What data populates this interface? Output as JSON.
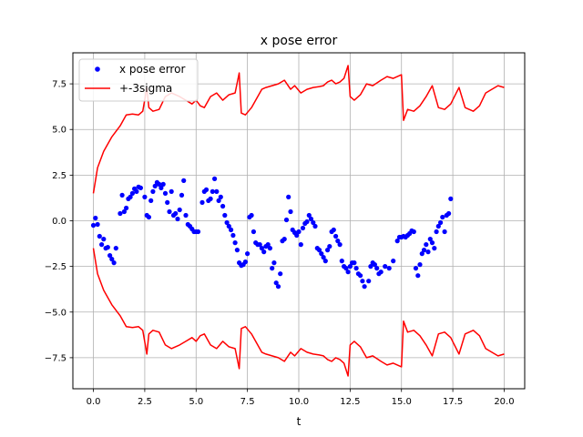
{
  "chart_data": {
    "type": "scatter",
    "title": "x pose error",
    "xlabel": "t",
    "ylabel": "",
    "xlim": [
      -1.0,
      21.0
    ],
    "ylim": [
      -9.2,
      9.2
    ],
    "xticks": [
      0.0,
      2.5,
      5.0,
      7.5,
      10.0,
      12.5,
      15.0,
      17.5,
      20.0
    ],
    "xtick_labels": [
      "0.0",
      "2.5",
      "5.0",
      "7.5",
      "10.0",
      "12.5",
      "15.0",
      "17.5",
      "20.0"
    ],
    "yticks": [
      -7.5,
      -5.0,
      -2.5,
      0.0,
      2.5,
      5.0,
      7.5
    ],
    "ytick_labels": [
      "−7.5",
      "−5.0",
      "−2.5",
      "0.0",
      "2.5",
      "5.0",
      "7.5"
    ],
    "grid": true,
    "legend_position": "upper-left",
    "series": [
      {
        "name": "x pose error",
        "kind": "scatter",
        "color": "#0000ff",
        "points": [
          [
            0.0,
            -0.25
          ],
          [
            0.1,
            0.15
          ],
          [
            0.2,
            -0.2
          ],
          [
            0.3,
            -0.85
          ],
          [
            0.4,
            -1.3
          ],
          [
            0.5,
            -1.0
          ],
          [
            0.6,
            -1.5
          ],
          [
            0.7,
            -1.45
          ],
          [
            0.8,
            -1.9
          ],
          [
            0.9,
            -2.1
          ],
          [
            1.0,
            -2.3
          ],
          [
            1.1,
            -1.5
          ],
          [
            1.3,
            0.4
          ],
          [
            1.4,
            1.4
          ],
          [
            1.5,
            0.5
          ],
          [
            1.6,
            0.7
          ],
          [
            1.7,
            1.2
          ],
          [
            1.8,
            1.3
          ],
          [
            1.9,
            1.5
          ],
          [
            2.0,
            1.75
          ],
          [
            2.1,
            1.6
          ],
          [
            2.2,
            1.85
          ],
          [
            2.3,
            1.8
          ],
          [
            2.5,
            1.3
          ],
          [
            2.6,
            0.3
          ],
          [
            2.7,
            0.2
          ],
          [
            2.8,
            1.1
          ],
          [
            2.9,
            1.6
          ],
          [
            3.0,
            1.9
          ],
          [
            3.1,
            2.1
          ],
          [
            3.2,
            2.0
          ],
          [
            3.3,
            1.8
          ],
          [
            3.4,
            2.0
          ],
          [
            3.5,
            1.5
          ],
          [
            3.6,
            1.0
          ],
          [
            3.7,
            0.5
          ],
          [
            3.8,
            1.6
          ],
          [
            3.9,
            0.3
          ],
          [
            4.0,
            0.4
          ],
          [
            4.1,
            0.1
          ],
          [
            4.2,
            0.6
          ],
          [
            4.3,
            1.4
          ],
          [
            4.4,
            2.2
          ],
          [
            4.5,
            0.3
          ],
          [
            4.6,
            -0.2
          ],
          [
            4.7,
            -0.3
          ],
          [
            4.8,
            -0.45
          ],
          [
            4.9,
            -0.6
          ],
          [
            5.0,
            -0.6
          ],
          [
            5.1,
            -0.6
          ],
          [
            5.3,
            1.0
          ],
          [
            5.4,
            1.6
          ],
          [
            5.5,
            1.7
          ],
          [
            5.6,
            1.1
          ],
          [
            5.7,
            1.2
          ],
          [
            5.8,
            1.6
          ],
          [
            5.9,
            2.3
          ],
          [
            6.0,
            1.6
          ],
          [
            6.1,
            1.1
          ],
          [
            6.2,
            1.3
          ],
          [
            6.3,
            0.8
          ],
          [
            6.4,
            0.3
          ],
          [
            6.5,
            -0.1
          ],
          [
            6.6,
            -0.3
          ],
          [
            6.7,
            -0.5
          ],
          [
            6.8,
            -0.8
          ],
          [
            6.9,
            -1.2
          ],
          [
            7.0,
            -1.6
          ],
          [
            7.1,
            -2.3
          ],
          [
            7.2,
            -2.45
          ],
          [
            7.3,
            -2.4
          ],
          [
            7.4,
            -2.25
          ],
          [
            7.5,
            -1.8
          ],
          [
            7.6,
            0.2
          ],
          [
            7.7,
            0.3
          ],
          [
            7.8,
            -0.6
          ],
          [
            7.9,
            -1.2
          ],
          [
            8.0,
            -1.3
          ],
          [
            8.1,
            -1.3
          ],
          [
            8.2,
            -1.5
          ],
          [
            8.3,
            -1.7
          ],
          [
            8.4,
            -1.4
          ],
          [
            8.5,
            -1.3
          ],
          [
            8.6,
            -1.5
          ],
          [
            8.7,
            -2.6
          ],
          [
            8.8,
            -2.3
          ],
          [
            8.9,
            -3.4
          ],
          [
            9.0,
            -3.6
          ],
          [
            9.1,
            -2.9
          ],
          [
            9.2,
            -1.1
          ],
          [
            9.3,
            -1.0
          ],
          [
            9.4,
            0.05
          ],
          [
            9.5,
            1.3
          ],
          [
            9.6,
            0.5
          ],
          [
            9.7,
            -0.5
          ],
          [
            9.8,
            -0.65
          ],
          [
            9.9,
            -0.8
          ],
          [
            10.0,
            -0.6
          ],
          [
            10.1,
            -1.3
          ],
          [
            10.2,
            -0.4
          ],
          [
            10.3,
            -0.15
          ],
          [
            10.4,
            -0.05
          ],
          [
            10.5,
            0.3
          ],
          [
            10.6,
            0.1
          ],
          [
            10.7,
            -0.1
          ],
          [
            10.8,
            -0.3
          ],
          [
            10.9,
            -1.5
          ],
          [
            11.0,
            -1.6
          ],
          [
            11.1,
            -1.8
          ],
          [
            11.2,
            -2.0
          ],
          [
            11.3,
            -2.2
          ],
          [
            11.4,
            -1.6
          ],
          [
            11.5,
            -1.4
          ],
          [
            11.6,
            -0.6
          ],
          [
            11.7,
            -0.5
          ],
          [
            11.8,
            -0.85
          ],
          [
            11.9,
            -1.1
          ],
          [
            12.0,
            -1.3
          ],
          [
            12.1,
            -2.2
          ],
          [
            12.2,
            -2.5
          ],
          [
            12.3,
            -2.6
          ],
          [
            12.4,
            -2.8
          ],
          [
            12.5,
            -2.5
          ],
          [
            12.6,
            -2.3
          ],
          [
            12.7,
            -2.3
          ],
          [
            12.8,
            -2.6
          ],
          [
            12.9,
            -2.9
          ],
          [
            13.0,
            -3.0
          ],
          [
            13.1,
            -3.3
          ],
          [
            13.2,
            -3.6
          ],
          [
            13.4,
            -3.3
          ],
          [
            13.5,
            -2.5
          ],
          [
            13.6,
            -2.3
          ],
          [
            13.7,
            -2.4
          ],
          [
            13.8,
            -2.6
          ],
          [
            13.9,
            -2.9
          ],
          [
            14.0,
            -2.8
          ],
          [
            14.2,
            -2.5
          ],
          [
            14.4,
            -2.6
          ],
          [
            14.6,
            -2.2
          ],
          [
            14.8,
            -1.1
          ],
          [
            14.9,
            -0.9
          ],
          [
            15.0,
            -0.9
          ],
          [
            15.1,
            -0.85
          ],
          [
            15.2,
            -0.9
          ],
          [
            15.3,
            -0.8
          ],
          [
            15.4,
            -0.7
          ],
          [
            15.5,
            -0.55
          ],
          [
            15.6,
            -0.6
          ],
          [
            15.7,
            -2.6
          ],
          [
            15.8,
            -3.0
          ],
          [
            15.9,
            -2.4
          ],
          [
            16.0,
            -1.8
          ],
          [
            16.1,
            -1.6
          ],
          [
            16.2,
            -1.3
          ],
          [
            16.3,
            -1.7
          ],
          [
            16.4,
            -1.0
          ],
          [
            16.5,
            -1.2
          ],
          [
            16.6,
            -1.5
          ],
          [
            16.7,
            -0.6
          ],
          [
            16.8,
            -0.3
          ],
          [
            16.9,
            -0.1
          ],
          [
            17.0,
            0.2
          ],
          [
            17.1,
            -0.6
          ],
          [
            17.2,
            0.3
          ],
          [
            17.3,
            0.4
          ],
          [
            17.4,
            1.2
          ]
        ]
      },
      {
        "name": "+-3sigma",
        "kind": "line",
        "color": "#ff0000",
        "upper": [
          [
            0.0,
            1.5
          ],
          [
            0.2,
            2.9
          ],
          [
            0.5,
            3.8
          ],
          [
            0.9,
            4.6
          ],
          [
            1.3,
            5.2
          ],
          [
            1.6,
            5.8
          ],
          [
            1.9,
            5.85
          ],
          [
            2.2,
            5.8
          ],
          [
            2.4,
            6.0
          ],
          [
            2.6,
            7.3
          ],
          [
            2.7,
            6.2
          ],
          [
            2.9,
            6.0
          ],
          [
            3.2,
            6.1
          ],
          [
            3.5,
            6.8
          ],
          [
            3.8,
            7.0
          ],
          [
            4.2,
            6.8
          ],
          [
            4.5,
            6.6
          ],
          [
            4.8,
            6.4
          ],
          [
            5.0,
            6.6
          ],
          [
            5.2,
            6.3
          ],
          [
            5.4,
            6.2
          ],
          [
            5.7,
            6.8
          ],
          [
            6.0,
            7.0
          ],
          [
            6.3,
            6.6
          ],
          [
            6.6,
            6.9
          ],
          [
            6.9,
            7.0
          ],
          [
            7.1,
            8.1
          ],
          [
            7.2,
            5.9
          ],
          [
            7.4,
            5.8
          ],
          [
            7.7,
            6.2
          ],
          [
            8.0,
            6.8
          ],
          [
            8.2,
            7.2
          ],
          [
            8.4,
            7.3
          ],
          [
            8.7,
            7.4
          ],
          [
            9.0,
            7.5
          ],
          [
            9.3,
            7.7
          ],
          [
            9.6,
            7.2
          ],
          [
            9.8,
            7.4
          ],
          [
            10.1,
            7.0
          ],
          [
            10.4,
            7.2
          ],
          [
            10.7,
            7.3
          ],
          [
            11.0,
            7.35
          ],
          [
            11.2,
            7.4
          ],
          [
            11.4,
            7.6
          ],
          [
            11.6,
            7.7
          ],
          [
            11.8,
            7.5
          ],
          [
            12.0,
            7.6
          ],
          [
            12.2,
            7.8
          ],
          [
            12.4,
            8.5
          ],
          [
            12.5,
            6.8
          ],
          [
            12.7,
            6.6
          ],
          [
            13.0,
            6.9
          ],
          [
            13.3,
            7.5
          ],
          [
            13.6,
            7.4
          ],
          [
            14.0,
            7.7
          ],
          [
            14.3,
            7.9
          ],
          [
            14.6,
            7.8
          ],
          [
            15.0,
            8.0
          ],
          [
            15.1,
            5.5
          ],
          [
            15.3,
            6.1
          ],
          [
            15.6,
            6.0
          ],
          [
            15.9,
            6.3
          ],
          [
            16.2,
            6.8
          ],
          [
            16.5,
            7.4
          ],
          [
            16.8,
            6.2
          ],
          [
            17.1,
            6.1
          ],
          [
            17.4,
            6.4
          ],
          [
            17.8,
            7.3
          ],
          [
            18.1,
            6.2
          ],
          [
            18.5,
            6.0
          ],
          [
            18.8,
            6.3
          ],
          [
            19.1,
            7.0
          ],
          [
            19.4,
            7.2
          ],
          [
            19.7,
            7.4
          ],
          [
            20.0,
            7.3
          ]
        ],
        "lower": [
          [
            0.0,
            -1.5
          ],
          [
            0.2,
            -2.9
          ],
          [
            0.5,
            -3.8
          ],
          [
            0.9,
            -4.6
          ],
          [
            1.3,
            -5.2
          ],
          [
            1.6,
            -5.8
          ],
          [
            1.9,
            -5.85
          ],
          [
            2.2,
            -5.8
          ],
          [
            2.4,
            -6.0
          ],
          [
            2.6,
            -7.3
          ],
          [
            2.7,
            -6.2
          ],
          [
            2.9,
            -6.0
          ],
          [
            3.2,
            -6.1
          ],
          [
            3.5,
            -6.8
          ],
          [
            3.8,
            -7.0
          ],
          [
            4.2,
            -6.8
          ],
          [
            4.5,
            -6.6
          ],
          [
            4.8,
            -6.4
          ],
          [
            5.0,
            -6.6
          ],
          [
            5.2,
            -6.3
          ],
          [
            5.4,
            -6.2
          ],
          [
            5.7,
            -6.8
          ],
          [
            6.0,
            -7.0
          ],
          [
            6.3,
            -6.6
          ],
          [
            6.6,
            -6.9
          ],
          [
            6.9,
            -7.0
          ],
          [
            7.1,
            -8.1
          ],
          [
            7.2,
            -5.9
          ],
          [
            7.4,
            -5.8
          ],
          [
            7.7,
            -6.2
          ],
          [
            8.0,
            -6.8
          ],
          [
            8.2,
            -7.2
          ],
          [
            8.4,
            -7.3
          ],
          [
            8.7,
            -7.4
          ],
          [
            9.0,
            -7.5
          ],
          [
            9.3,
            -7.7
          ],
          [
            9.6,
            -7.2
          ],
          [
            9.8,
            -7.4
          ],
          [
            10.1,
            -7.0
          ],
          [
            10.4,
            -7.2
          ],
          [
            10.7,
            -7.3
          ],
          [
            11.0,
            -7.35
          ],
          [
            11.2,
            -7.4
          ],
          [
            11.4,
            -7.6
          ],
          [
            11.6,
            -7.7
          ],
          [
            11.8,
            -7.5
          ],
          [
            12.0,
            -7.6
          ],
          [
            12.2,
            -7.8
          ],
          [
            12.4,
            -8.5
          ],
          [
            12.5,
            -6.8
          ],
          [
            12.7,
            -6.6
          ],
          [
            13.0,
            -6.9
          ],
          [
            13.3,
            -7.5
          ],
          [
            13.6,
            -7.4
          ],
          [
            14.0,
            -7.7
          ],
          [
            14.3,
            -7.9
          ],
          [
            14.6,
            -7.8
          ],
          [
            15.0,
            -8.0
          ],
          [
            15.1,
            -5.5
          ],
          [
            15.3,
            -6.1
          ],
          [
            15.6,
            -6.0
          ],
          [
            15.9,
            -6.3
          ],
          [
            16.2,
            -6.8
          ],
          [
            16.5,
            -7.4
          ],
          [
            16.8,
            -6.2
          ],
          [
            17.1,
            -6.1
          ],
          [
            17.4,
            -6.4
          ],
          [
            17.8,
            -7.3
          ],
          [
            18.1,
            -6.2
          ],
          [
            18.5,
            -6.0
          ],
          [
            18.8,
            -6.3
          ],
          [
            19.1,
            -7.0
          ],
          [
            19.4,
            -7.2
          ],
          [
            19.7,
            -7.4
          ],
          [
            20.0,
            -7.3
          ]
        ]
      }
    ]
  }
}
